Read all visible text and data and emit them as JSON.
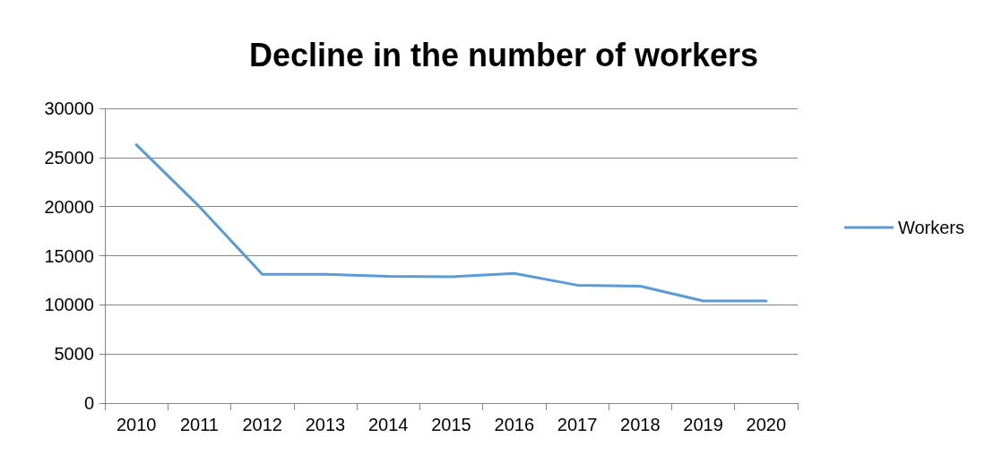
{
  "chart_data": {
    "type": "line",
    "title": "Decline in the number of workers",
    "categories": [
      "2010",
      "2011",
      "2012",
      "2013",
      "2014",
      "2015",
      "2016",
      "2017",
      "2018",
      "2019",
      "2020"
    ],
    "series": [
      {
        "name": "Workers",
        "color": "#5b9bd5",
        "values": [
          26300,
          20000,
          13100,
          13100,
          12900,
          12850,
          13200,
          12000,
          11900,
          10400,
          10400
        ]
      }
    ],
    "ylim": [
      0,
      30000
    ],
    "yticks": [
      0,
      5000,
      10000,
      15000,
      20000,
      25000,
      30000
    ],
    "grid": "y",
    "legend": "right",
    "marker": "none"
  }
}
